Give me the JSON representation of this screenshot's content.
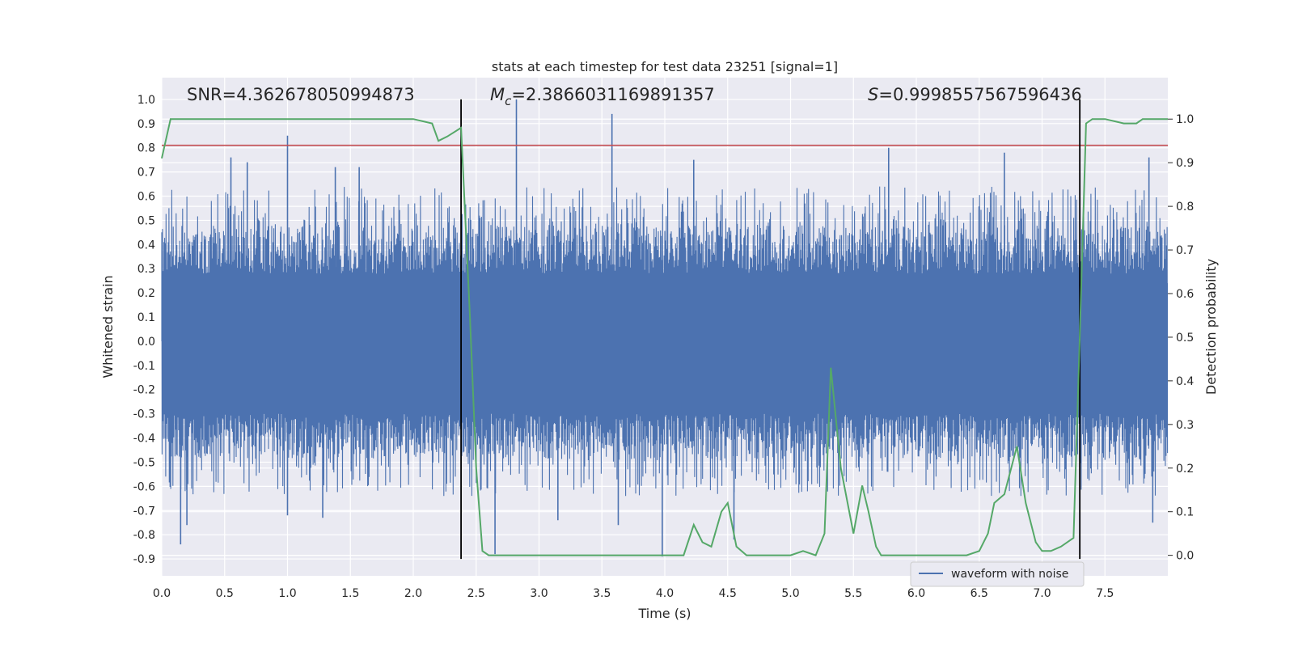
{
  "chart_data": {
    "type": "line",
    "title": "stats at each timestep for test data 23251 [signal=1]",
    "xlabel": "Time (s)",
    "ylabel": "Whitened strain",
    "y2label": "Detection probability",
    "xlim": [
      0.0,
      8.0
    ],
    "ylim": [
      -0.97,
      1.09
    ],
    "y2lim": [
      -0.047,
      1.095
    ],
    "xticks": [
      "0.0",
      "0.5",
      "1.0",
      "1.5",
      "2.0",
      "2.5",
      "3.0",
      "3.5",
      "4.0",
      "4.5",
      "5.0",
      "5.5",
      "6.0",
      "6.5",
      "7.0",
      "7.5"
    ],
    "yticks": [
      "1.0",
      "0.9",
      "0.8",
      "0.7",
      "0.6",
      "0.5",
      "0.4",
      "0.3",
      "0.2",
      "0.1",
      "0.0",
      "-0.1",
      "-0.2",
      "-0.3",
      "-0.4",
      "-0.5",
      "-0.6",
      "-0.7",
      "-0.8",
      "-0.9"
    ],
    "y2ticks": [
      "1.0",
      "0.9",
      "0.8",
      "0.7",
      "0.6",
      "0.5",
      "0.4",
      "0.3",
      "0.2",
      "0.1",
      "0.0"
    ],
    "grid": true,
    "legend": {
      "position": "lower-right",
      "entries": [
        {
          "label": "waveform with noise",
          "color": "#4c72b0"
        }
      ]
    },
    "annotations": {
      "snr": "SNR=4.362678050994873",
      "mc_symbol": "M",
      "mc_sub": "c",
      "mc_value": "=2.3866031169891357",
      "s_symbol": "S",
      "s_value": "=0.9998557567596436"
    },
    "colors": {
      "waveform": "#4c72b0",
      "probability": "#55a868",
      "threshold": "#c44e52",
      "vlines": "#000000",
      "axes_bg": "#eaeaf2",
      "grid": "#ffffff"
    },
    "threshold_y": 0.81,
    "vlines_x": [
      2.38,
      7.3
    ],
    "waveform": {
      "name": "waveform with noise",
      "note_envelope": "approximate noise envelope; dense oscillation between bounds",
      "upper_typical": 0.55,
      "lower_typical": -0.55,
      "peaks": [
        {
          "x": 0.55,
          "y": 0.76
        },
        {
          "x": 0.68,
          "y": 0.74
        },
        {
          "x": 1.0,
          "y": 0.85
        },
        {
          "x": 1.38,
          "y": 0.72
        },
        {
          "x": 1.57,
          "y": 0.72
        },
        {
          "x": 2.82,
          "y": 1.0
        },
        {
          "x": 3.58,
          "y": 0.94
        },
        {
          "x": 4.23,
          "y": 0.75
        },
        {
          "x": 5.78,
          "y": 0.8
        },
        {
          "x": 6.7,
          "y": 0.78
        },
        {
          "x": 7.85,
          "y": 0.76
        }
      ],
      "troughs": [
        {
          "x": 0.15,
          "y": -0.84
        },
        {
          "x": 0.2,
          "y": -0.76
        },
        {
          "x": 1.0,
          "y": -0.72
        },
        {
          "x": 1.28,
          "y": -0.73
        },
        {
          "x": 2.65,
          "y": -0.88
        },
        {
          "x": 3.15,
          "y": -0.74
        },
        {
          "x": 3.63,
          "y": -0.76
        },
        {
          "x": 3.98,
          "y": -0.89
        },
        {
          "x": 4.55,
          "y": -0.82
        },
        {
          "x": 7.88,
          "y": -0.75
        }
      ]
    },
    "probability": {
      "name": "Detection probability",
      "x": [
        0.0,
        0.07,
        0.5,
        1.0,
        1.5,
        2.0,
        2.15,
        2.2,
        2.27,
        2.38,
        2.45,
        2.5,
        2.55,
        2.6,
        2.7,
        2.8,
        3.0,
        3.5,
        4.0,
        4.15,
        4.23,
        4.3,
        4.37,
        4.45,
        4.5,
        4.57,
        4.65,
        5.0,
        5.1,
        5.2,
        5.27,
        5.32,
        5.4,
        5.5,
        5.57,
        5.62,
        5.68,
        5.72,
        5.8,
        6.0,
        6.2,
        6.4,
        6.5,
        6.57,
        6.62,
        6.7,
        6.8,
        6.87,
        6.95,
        7.0,
        7.07,
        7.15,
        7.25,
        7.3,
        7.35,
        7.4,
        7.5,
        7.65,
        7.75,
        7.8,
        8.0
      ],
      "y": [
        0.91,
        1.0,
        1.0,
        1.0,
        1.0,
        1.0,
        0.99,
        0.95,
        0.96,
        0.98,
        0.55,
        0.2,
        0.01,
        0.0,
        0.0,
        0.0,
        0.0,
        0.0,
        0.0,
        0.0,
        0.07,
        0.03,
        0.02,
        0.1,
        0.12,
        0.02,
        0.0,
        0.0,
        0.01,
        0.0,
        0.05,
        0.43,
        0.2,
        0.05,
        0.16,
        0.1,
        0.02,
        0.0,
        0.0,
        0.0,
        0.0,
        0.0,
        0.01,
        0.05,
        0.12,
        0.14,
        0.25,
        0.12,
        0.03,
        0.01,
        0.01,
        0.02,
        0.04,
        0.5,
        0.99,
        1.0,
        1.0,
        0.99,
        0.99,
        1.0,
        1.0
      ]
    }
  }
}
